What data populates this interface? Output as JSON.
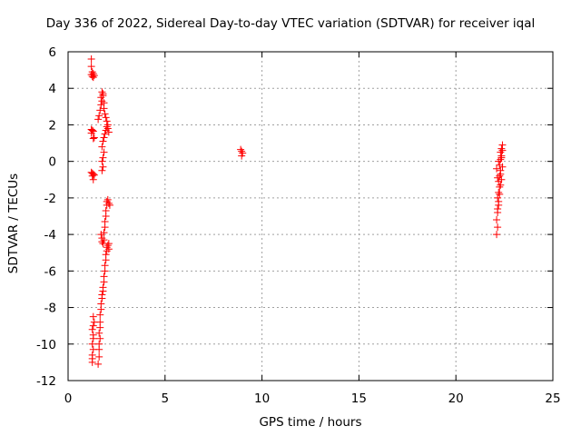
{
  "chart_data": {
    "type": "scatter",
    "title": "Day 336 of 2022, Sidereal Day-to-day VTEC variation (SDTVAR) for receiver iqal",
    "xlabel": "GPS time / hours",
    "ylabel": "SDTVAR / TECUs",
    "xlim": [
      0,
      25
    ],
    "ylim": [
      -12,
      6
    ],
    "xticks": [
      0,
      5,
      10,
      15,
      20,
      25
    ],
    "yticks": [
      -12,
      -10,
      -8,
      -6,
      -4,
      -2,
      0,
      2,
      4,
      6
    ],
    "grid": true,
    "marker": "+",
    "color": "#ff0000",
    "series": [
      {
        "name": "SDTVAR",
        "points": [
          [
            1.2,
            5.6
          ],
          [
            1.2,
            5.2
          ],
          [
            1.25,
            4.9
          ],
          [
            1.3,
            4.8
          ],
          [
            1.2,
            4.75
          ],
          [
            1.35,
            4.7
          ],
          [
            1.25,
            4.65
          ],
          [
            1.3,
            4.6
          ],
          [
            1.2,
            1.75
          ],
          [
            1.25,
            1.7
          ],
          [
            1.3,
            1.65
          ],
          [
            1.2,
            1.55
          ],
          [
            1.35,
            1.3
          ],
          [
            1.3,
            1.25
          ],
          [
            1.2,
            -0.6
          ],
          [
            1.25,
            -0.65
          ],
          [
            1.3,
            -0.7
          ],
          [
            1.35,
            -0.75
          ],
          [
            1.25,
            -0.8
          ],
          [
            1.3,
            -1.0
          ],
          [
            1.3,
            -8.5
          ],
          [
            1.35,
            -8.8
          ],
          [
            1.3,
            -9.0
          ],
          [
            1.25,
            -9.2
          ],
          [
            1.3,
            -9.5
          ],
          [
            1.3,
            -9.7
          ],
          [
            1.25,
            -10.0
          ],
          [
            1.3,
            -10.3
          ],
          [
            1.25,
            -10.6
          ],
          [
            1.25,
            -10.8
          ],
          [
            1.25,
            -11.0
          ],
          [
            1.55,
            -11.1
          ],
          [
            1.6,
            -10.7
          ],
          [
            1.6,
            -10.3
          ],
          [
            1.6,
            -10.0
          ],
          [
            1.65,
            -9.7
          ],
          [
            1.6,
            -9.4
          ],
          [
            1.65,
            -9.1
          ],
          [
            1.65,
            -8.8
          ],
          [
            1.65,
            -8.4
          ],
          [
            1.7,
            -8.1
          ],
          [
            1.7,
            -7.8
          ],
          [
            1.75,
            -7.5
          ],
          [
            1.75,
            -7.3
          ],
          [
            1.8,
            -7.1
          ],
          [
            1.8,
            -6.9
          ],
          [
            1.85,
            -6.6
          ],
          [
            1.85,
            -6.3
          ],
          [
            1.9,
            -6.0
          ],
          [
            1.9,
            -5.7
          ],
          [
            1.95,
            -5.4
          ],
          [
            1.95,
            -5.1
          ],
          [
            2.0,
            -4.9
          ],
          [
            2.0,
            -4.7
          ],
          [
            2.05,
            -4.6
          ],
          [
            2.1,
            -4.5
          ],
          [
            2.1,
            -4.8
          ],
          [
            1.7,
            -4.0
          ],
          [
            1.75,
            -4.2
          ],
          [
            1.75,
            -4.4
          ],
          [
            1.8,
            -4.5
          ],
          [
            1.85,
            -4.3
          ],
          [
            1.85,
            -3.9
          ],
          [
            1.9,
            -3.6
          ],
          [
            1.9,
            -3.3
          ],
          [
            1.95,
            -3.0
          ],
          [
            1.95,
            -2.7
          ],
          [
            2.0,
            -2.4
          ],
          [
            2.0,
            -2.2
          ],
          [
            2.05,
            -2.1
          ],
          [
            2.1,
            -2.3
          ],
          [
            2.15,
            -2.4
          ],
          [
            1.75,
            -0.5
          ],
          [
            1.8,
            -0.3
          ],
          [
            1.75,
            0.0
          ],
          [
            1.8,
            0.2
          ],
          [
            1.85,
            0.5
          ],
          [
            1.75,
            0.8
          ],
          [
            1.8,
            1.1
          ],
          [
            1.85,
            1.3
          ],
          [
            1.9,
            1.5
          ],
          [
            1.95,
            1.7
          ],
          [
            2.0,
            1.9
          ],
          [
            2.05,
            1.8
          ],
          [
            2.1,
            1.6
          ],
          [
            1.55,
            2.3
          ],
          [
            1.6,
            2.5
          ],
          [
            1.65,
            2.8
          ],
          [
            1.7,
            3.1
          ],
          [
            1.75,
            3.3
          ],
          [
            1.7,
            3.5
          ],
          [
            1.8,
            3.7
          ],
          [
            1.75,
            3.8
          ],
          [
            1.8,
            3.6
          ],
          [
            1.85,
            3.2
          ],
          [
            1.85,
            2.9
          ],
          [
            1.9,
            2.6
          ],
          [
            1.95,
            2.4
          ],
          [
            2.0,
            2.2
          ],
          [
            2.05,
            2.0
          ],
          [
            8.9,
            0.65
          ],
          [
            8.95,
            0.55
          ],
          [
            9.0,
            0.45
          ],
          [
            8.95,
            0.3
          ],
          [
            22.1,
            -4.0
          ],
          [
            22.15,
            -3.6
          ],
          [
            22.1,
            -3.2
          ],
          [
            22.15,
            -2.8
          ],
          [
            22.2,
            -2.4
          ],
          [
            22.15,
            -2.0
          ],
          [
            22.2,
            -1.7
          ],
          [
            22.25,
            -1.4
          ],
          [
            22.2,
            -1.1
          ],
          [
            22.25,
            -0.8
          ],
          [
            22.3,
            -0.5
          ],
          [
            22.25,
            -0.2
          ],
          [
            22.3,
            0.1
          ],
          [
            22.35,
            0.3
          ],
          [
            22.3,
            0.5
          ],
          [
            22.35,
            0.7
          ],
          [
            22.4,
            0.9
          ],
          [
            22.4,
            0.6
          ],
          [
            22.35,
            0.2
          ],
          [
            22.4,
            -0.3
          ],
          [
            22.3,
            -0.7
          ],
          [
            22.35,
            -1.0
          ],
          [
            22.3,
            -1.3
          ],
          [
            22.25,
            -1.8
          ],
          [
            22.2,
            -2.2
          ],
          [
            22.15,
            -2.6
          ],
          [
            22.1,
            -0.4
          ],
          [
            22.15,
            -0.9
          ],
          [
            22.2,
            0.0
          ]
        ]
      }
    ]
  }
}
